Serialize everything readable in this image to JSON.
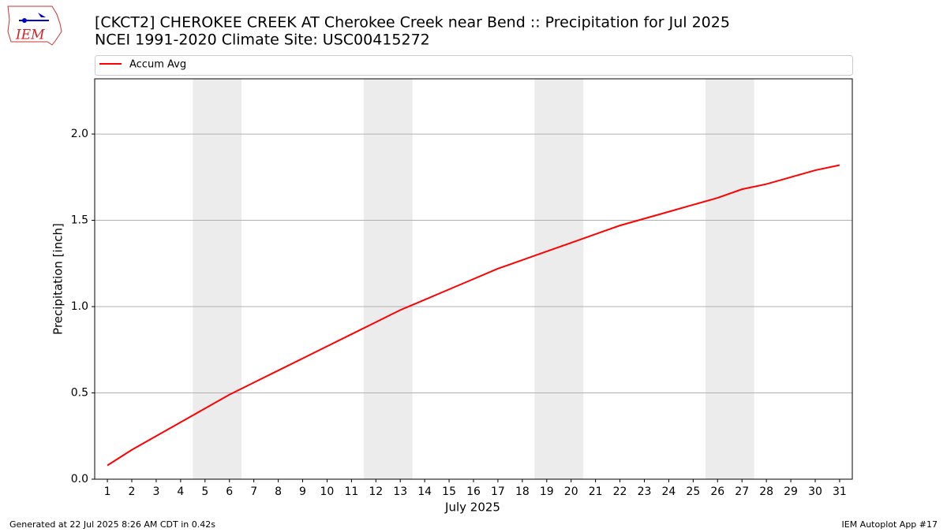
{
  "chart_data": {
    "type": "line",
    "title": "[CKCT2] CHEROKEE CREEK  AT Cherokee Creek near Bend :: Precipitation for Jul 2025",
    "subtitle": "NCEI 1991-2020 Climate Site: USC00415272",
    "logo_text": "IEM",
    "x_label": "July 2025",
    "y_label": "Precipitation [inch]",
    "x": [
      1,
      2,
      3,
      4,
      5,
      6,
      7,
      8,
      9,
      10,
      11,
      12,
      13,
      14,
      15,
      16,
      17,
      18,
      19,
      20,
      21,
      22,
      23,
      24,
      25,
      26,
      27,
      28,
      29,
      30,
      31
    ],
    "series": [
      {
        "name": "Accum Avg",
        "color": "#ff0000",
        "values": [
          0.08,
          0.17,
          0.25,
          0.33,
          0.41,
          0.49,
          0.56,
          0.63,
          0.7,
          0.77,
          0.84,
          0.91,
          0.98,
          1.04,
          1.1,
          1.16,
          1.22,
          1.27,
          1.32,
          1.37,
          1.42,
          1.47,
          1.51,
          1.55,
          1.59,
          1.63,
          1.68,
          1.71,
          1.75,
          1.79,
          1.82
        ]
      }
    ],
    "weekend_bands": [
      [
        4.5,
        6.5
      ],
      [
        11.5,
        13.5
      ],
      [
        18.5,
        20.5
      ],
      [
        25.5,
        27.5
      ]
    ],
    "band_color": "#ececec",
    "xlim": [
      0.48,
      31.52
    ],
    "xticks": [
      1,
      2,
      3,
      4,
      5,
      6,
      7,
      8,
      9,
      10,
      11,
      12,
      13,
      14,
      15,
      16,
      17,
      18,
      19,
      20,
      21,
      22,
      23,
      24,
      25,
      26,
      27,
      28,
      29,
      30,
      31
    ],
    "ylim": [
      0,
      2.32
    ],
    "yticks": [
      {
        "value": 0,
        "label": "0.0"
      },
      0.5,
      {
        "value": 1,
        "label": "1.0"
      },
      1.5,
      {
        "value": 2,
        "label": "2.0"
      }
    ],
    "grid": true,
    "legend_position": "top",
    "footer_left": "Generated at 22 Jul 2025 8:26 AM CDT in 0.42s",
    "footer_right": "IEM Autoplot App #17"
  }
}
